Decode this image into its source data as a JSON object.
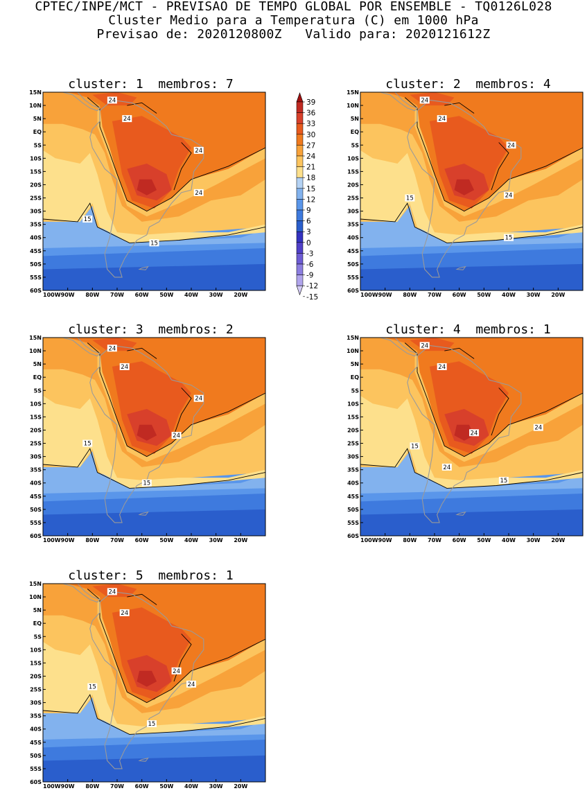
{
  "header": {
    "line1": "CPTEC/INPE/MCT - PREVISAO DE TEMPO GLOBAL POR ENSEMBLE - TQ0126L028",
    "line2": "Cluster Medio para a Temperatura (C) em 1000 hPa",
    "line3": "Previsao de: 2020120800Z   Valido para: 2020121612Z"
  },
  "panels": [
    {
      "title": "cluster: 1  membros: 7",
      "contour_labels": [
        "24",
        "24",
        "24",
        "24",
        "15",
        "15"
      ]
    },
    {
      "title": "cluster: 2  membros: 4",
      "contour_labels": [
        "24",
        "24",
        "24",
        "24",
        "15",
        "15"
      ]
    },
    {
      "title": "cluster: 3  membros: 2",
      "contour_labels": [
        "24",
        "24",
        "24",
        "24",
        "15",
        "15"
      ]
    },
    {
      "title": "cluster: 4  membros: 1",
      "contour_labels": [
        "24",
        "24",
        "24",
        "24",
        "24",
        "15",
        "15"
      ]
    },
    {
      "title": "cluster: 5  membros: 1",
      "contour_labels": [
        "24",
        "24",
        "24",
        "24",
        "15",
        "15"
      ]
    }
  ],
  "axes": {
    "lat_labels": [
      "15N",
      "10N",
      "5N",
      "EQ",
      "5S",
      "10S",
      "15S",
      "20S",
      "25S",
      "30S",
      "35S",
      "40S",
      "45S",
      "50S",
      "55S",
      "60S"
    ],
    "lon_labels": [
      "100W",
      "90W",
      "80W",
      "70W",
      "60W",
      "50W",
      "40W",
      "30W",
      "20W"
    ],
    "lon_range": [
      -100,
      -10
    ],
    "lat_range": [
      -60,
      15
    ]
  },
  "colorbar": {
    "labels": [
      "39",
      "36",
      "33",
      "30",
      "27",
      "24",
      "21",
      "18",
      "15",
      "12",
      "9",
      "6",
      "3",
      "0",
      "-3",
      "-6",
      "-9",
      "-12",
      "-15"
    ],
    "colors": [
      "#a01010",
      "#c02a22",
      "#d8402b",
      "#e85a1e",
      "#f07a1e",
      "#f8a23a",
      "#fcc45e",
      "#fde08c",
      "#b4d2f4",
      "#82b2ee",
      "#5a96ea",
      "#3e7ade",
      "#2a5ecc",
      "#3432c0",
      "#5040c8",
      "#6e5cd4",
      "#8c7ee0",
      "#b0a4ec",
      "#d4ccf6"
    ],
    "levels_note": ""
  },
  "colors": {
    "deep_blue": "#2a5ecc",
    "mid_blue": "#3e7ade",
    "blue": "#5a96ea",
    "light_blue": "#82b2ee",
    "pale_blue": "#b4d2f4",
    "pale_yellow": "#fde08c",
    "yellow": "#fcc45e",
    "orange": "#f8a23a",
    "dark_orange": "#f07a1e",
    "red_orange": "#e85a1e",
    "red": "#d8402b",
    "dark_red": "#c02a22",
    "land_outline": "#9a9a9a"
  }
}
